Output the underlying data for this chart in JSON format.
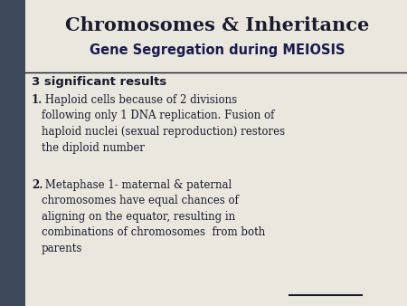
{
  "bg_color": "#eae8de",
  "sidebar_color": "#3d4a5c",
  "title": "Chromosomes & Inheritance",
  "subtitle": "Gene Segregation during MEIOSIS",
  "section_heading": "3 significant results",
  "point1_bold": "1.",
  "point1_text": " Haploid cells because of 2 divisions\nfollowing only 1 DNA replication. Fusion of\nhaploid nuclei (sexual reproduction) restores\nthe diploid number",
  "point2_bold": "2.",
  "point2_text": " Metaphase 1- maternal & paternal\nchromosomes have equal chances of\naligning on the equator, resulting in\ncombinations of chromosomes  from both\nparents",
  "title_color": "#1a1a2e",
  "subtitle_color": "#1a1a4e",
  "heading_color": "#1a1a2e",
  "body_color": "#1a1a2e",
  "divider_color": "#1a1a2e",
  "title_fontsize": 15,
  "subtitle_fontsize": 10.5,
  "heading_fontsize": 9.5,
  "body_fontsize": 8.5
}
